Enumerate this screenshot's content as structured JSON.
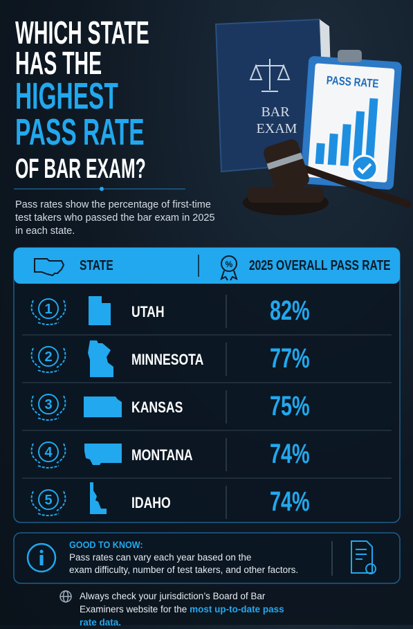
{
  "header": {
    "title_lines": [
      "WHICH STATE",
      "HAS THE",
      "HIGHEST",
      "PASS RATE",
      "OF BAR EXAM?"
    ],
    "description": "Pass rates show the percentage of first-time test takers who passed the bar exam in 2025 in each state."
  },
  "illustration": {
    "book_lines": [
      "BAR",
      "EXAM"
    ],
    "clipboard_label": "PASS RATE"
  },
  "table": {
    "columns": [
      "STATE",
      "2025 OVERALL PASS RATE"
    ],
    "rows": [
      [
        1,
        "UTAH",
        "82%"
      ],
      [
        2,
        "MINNESOTA",
        "77%"
      ],
      [
        3,
        "KANSAS",
        "75%"
      ],
      [
        4,
        "MONTANA",
        "74%"
      ],
      [
        5,
        "IDAHO",
        "74%"
      ]
    ]
  },
  "note": {
    "title": "GOOD TO KNOW:",
    "lines": [
      "Pass rates can vary each year based on the",
      "exam difficulty, number of test takers, and other factors."
    ]
  },
  "footer": {
    "text": "Always check your jurisdiction’s Board of Bar Examiners website for the ",
    "highlight": "most up-to-date pass rate data."
  }
}
